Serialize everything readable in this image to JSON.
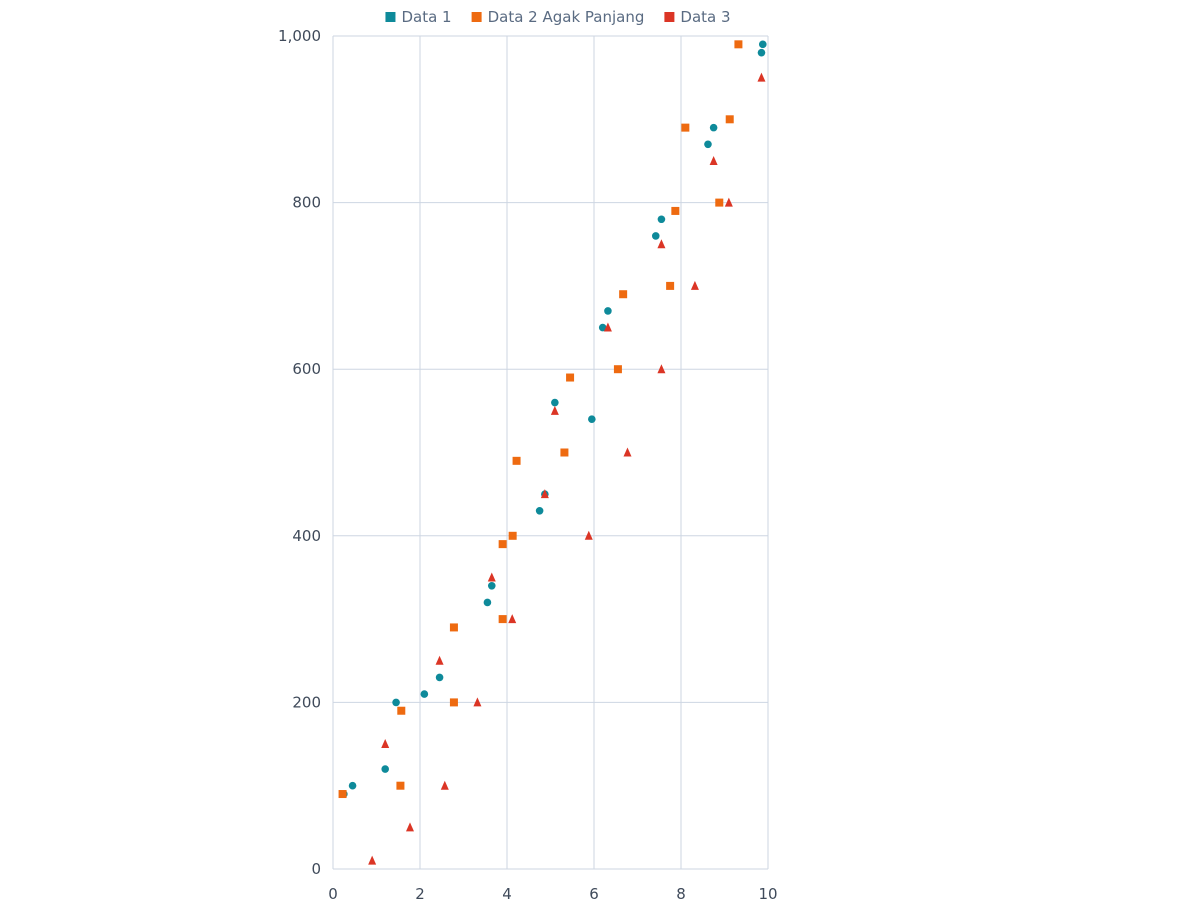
{
  "chart_data": {
    "type": "scatter",
    "title": "",
    "xlabel": "",
    "ylabel": "",
    "xlim": [
      0,
      10
    ],
    "ylim": [
      0,
      1000
    ],
    "x_ticks": [
      0,
      2,
      4,
      6,
      8,
      10
    ],
    "y_ticks": [
      0,
      200,
      400,
      600,
      800,
      1000
    ],
    "x_tick_labels": [
      "0",
      "2",
      "4",
      "6",
      "8",
      "10"
    ],
    "y_tick_labels": [
      "0",
      "200",
      "400",
      "600",
      "800",
      "1,000"
    ],
    "grid": true,
    "legend_position": "top",
    "series": [
      {
        "name": "Data 1",
        "marker": "circle",
        "color": "#0e8a9a",
        "points": [
          [
            0.25,
            90
          ],
          [
            0.45,
            100
          ],
          [
            1.2,
            120
          ],
          [
            1.45,
            200
          ],
          [
            2.1,
            210
          ],
          [
            2.45,
            230
          ],
          [
            3.55,
            320
          ],
          [
            3.65,
            340
          ],
          [
            4.75,
            430
          ],
          [
            4.87,
            450
          ],
          [
            5.1,
            560
          ],
          [
            5.95,
            540
          ],
          [
            6.2,
            650
          ],
          [
            6.32,
            670
          ],
          [
            7.42,
            760
          ],
          [
            7.55,
            780
          ],
          [
            8.62,
            870
          ],
          [
            8.75,
            890
          ],
          [
            9.85,
            980
          ],
          [
            9.88,
            990
          ]
        ]
      },
      {
        "name": "Data 2 Agak Panjang",
        "marker": "square",
        "color": "#ee6a10",
        "points": [
          [
            0.22,
            90
          ],
          [
            1.55,
            100
          ],
          [
            1.57,
            190
          ],
          [
            2.78,
            200
          ],
          [
            2.78,
            290
          ],
          [
            3.9,
            300
          ],
          [
            3.9,
            390
          ],
          [
            4.13,
            400
          ],
          [
            4.22,
            490
          ],
          [
            5.32,
            500
          ],
          [
            5.45,
            590
          ],
          [
            6.55,
            600
          ],
          [
            6.67,
            690
          ],
          [
            7.75,
            700
          ],
          [
            7.87,
            790
          ],
          [
            8.1,
            890
          ],
          [
            8.88,
            800
          ],
          [
            9.12,
            900
          ],
          [
            9.32,
            990
          ]
        ]
      },
      {
        "name": "Data 3",
        "marker": "triangle",
        "color": "#db3525",
        "points": [
          [
            0.9,
            10
          ],
          [
            1.77,
            50
          ],
          [
            2.57,
            100
          ],
          [
            1.2,
            150
          ],
          [
            3.32,
            200
          ],
          [
            2.45,
            250
          ],
          [
            4.12,
            300
          ],
          [
            3.65,
            350
          ],
          [
            5.88,
            400
          ],
          [
            4.87,
            450
          ],
          [
            6.77,
            500
          ],
          [
            5.1,
            550
          ],
          [
            7.55,
            600
          ],
          [
            6.32,
            650
          ],
          [
            8.32,
            700
          ],
          [
            7.55,
            750
          ],
          [
            9.1,
            800
          ],
          [
            8.75,
            850
          ],
          [
            9.85,
            950
          ]
        ]
      }
    ]
  }
}
